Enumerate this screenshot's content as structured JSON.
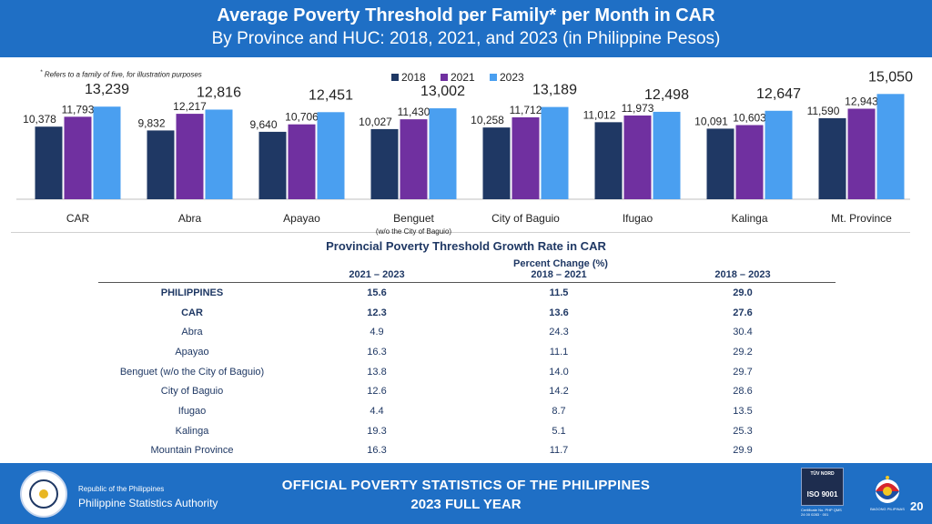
{
  "header": {
    "title": "Average Poverty Threshold per Family* per Month in CAR",
    "subtitle": "By Province and HUC: 2018, 2021, and 2023 (in Philippine Pesos)"
  },
  "footnote": "Refers to a family of five, for illustration purposes",
  "chart_data": {
    "type": "bar",
    "categories": [
      "CAR",
      "Abra",
      "Apayao",
      "Benguet",
      "City of Baguio",
      "Ifugao",
      "Kalinga",
      "Mt. Province"
    ],
    "category_sublabels": [
      "",
      "",
      "",
      "(w/o the City of Baguio)",
      "",
      "",
      "",
      ""
    ],
    "series": [
      {
        "name": "2018",
        "color": "#1f3864",
        "values": [
          10378,
          9832,
          9640,
          10027,
          10258,
          11012,
          10091,
          11590
        ]
      },
      {
        "name": "2021",
        "color": "#7030a0",
        "values": [
          11793,
          12217,
          10706,
          11430,
          11712,
          11973,
          10603,
          12943
        ]
      },
      {
        "name": "2023",
        "color": "#4a9ff0",
        "values": [
          13239,
          12816,
          12451,
          13002,
          13189,
          12498,
          12647,
          15050
        ]
      }
    ],
    "ylim": [
      0,
      16000
    ],
    "grid": false,
    "legend": "top-center"
  },
  "table": {
    "title": "Provincial Poverty Threshold Growth Rate in CAR",
    "group_header": "Percent Change (%)",
    "columns": [
      "2021 – 2023",
      "2018 – 2021",
      "2018 – 2023"
    ],
    "rows": [
      {
        "name": "PHILIPPINES",
        "values": [
          "15.6",
          "11.5",
          "29.0"
        ],
        "bold": true
      },
      {
        "name": "CAR",
        "values": [
          "12.3",
          "13.6",
          "27.6"
        ],
        "bold": true
      },
      {
        "name": "Abra",
        "values": [
          "4.9",
          "24.3",
          "30.4"
        ],
        "bold": false
      },
      {
        "name": "Apayao",
        "values": [
          "16.3",
          "11.1",
          "29.2"
        ],
        "bold": false
      },
      {
        "name": "Benguet (w/o the City of Baguio)",
        "values": [
          "13.8",
          "14.0",
          "29.7"
        ],
        "bold": false
      },
      {
        "name": "City of Baguio",
        "values": [
          "12.6",
          "14.2",
          "28.6"
        ],
        "bold": false
      },
      {
        "name": "Ifugao",
        "values": [
          "4.4",
          "8.7",
          "13.5"
        ],
        "bold": false
      },
      {
        "name": "Kalinga",
        "values": [
          "19.3",
          "5.1",
          "25.3"
        ],
        "bold": false
      },
      {
        "name": "Mountain Province",
        "values": [
          "16.3",
          "11.7",
          "29.9"
        ],
        "bold": false
      }
    ]
  },
  "footer": {
    "org_line1": "Republic of the Philippines",
    "org_line2": "Philippine Statistics Authority",
    "banner_line1": "OFFICIAL POVERTY STATISTICS OF THE PHILIPPINES",
    "banner_line2": "2023 FULL YEAR",
    "iso_top": "TÜV NORD",
    "iso_label": "ISO 9001",
    "iso_cert": "Certificate No. PHP QMS 24 00 0283 · 001",
    "bagong_pilipinas": "BAGONG PILIPINAS",
    "page_number": "20"
  },
  "colors": {
    "header_bg": "#1f6fc5",
    "table_text": "#1f3864"
  }
}
